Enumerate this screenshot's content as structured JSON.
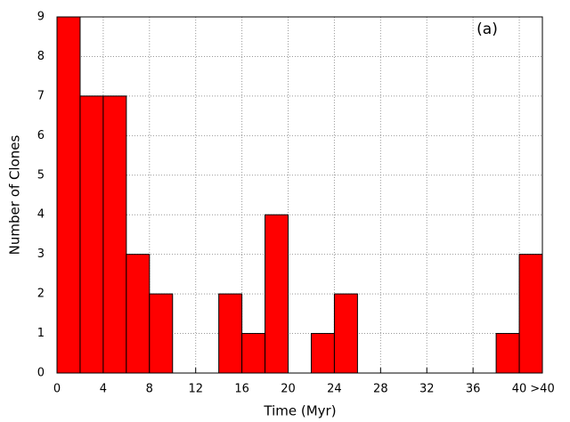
{
  "chart_data": {
    "type": "histogram",
    "annotation": "(a)",
    "x_label": "Time (Myr)",
    "y_label": "Number of Clones",
    "bins": [
      0,
      2,
      4,
      6,
      8,
      10,
      12,
      14,
      16,
      18,
      20,
      22,
      24,
      26,
      28,
      30,
      32,
      34,
      36,
      38,
      40,
      42
    ],
    "values": [
      9,
      7,
      7,
      3,
      2,
      0,
      0,
      2,
      1,
      4,
      0,
      1,
      2,
      0,
      0,
      0,
      0,
      0,
      0,
      1,
      3
    ],
    "color": "#ff0000",
    "xlim": [
      0,
      42
    ],
    "xticks": [
      0,
      4,
      8,
      12,
      16,
      20,
      24,
      28,
      32,
      36,
      40,
      {
        "value": 42,
        "label": ">40"
      }
    ],
    "ylim": [
      0,
      9
    ],
    "yticks": [
      0,
      1,
      2,
      3,
      4,
      5,
      6,
      7,
      8,
      9
    ],
    "grid": true
  }
}
